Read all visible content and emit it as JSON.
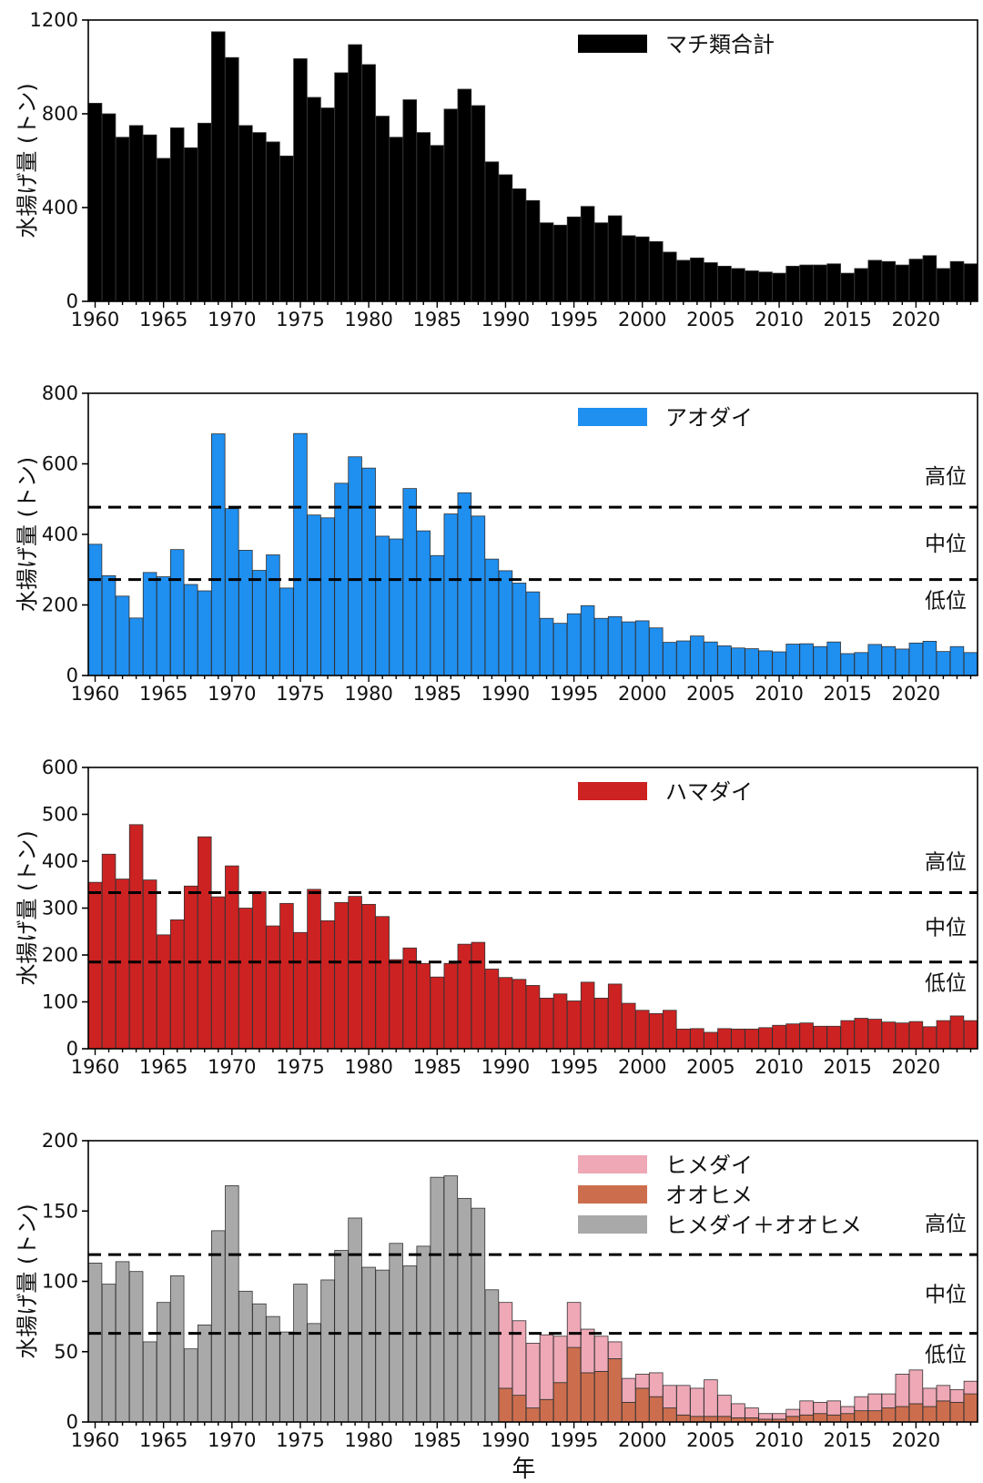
{
  "chart_data": [
    {
      "type": "bar",
      "ylabel": "水揚げ量 (トン)",
      "xlabel": "",
      "x_ticks": [
        "1960",
        "1965",
        "1970",
        "1975",
        "1980",
        "1985",
        "1990",
        "1995",
        "2000",
        "2005",
        "2010",
        "2015",
        "2020"
      ],
      "y_ticks": [
        "0",
        "400",
        "800",
        "1200"
      ],
      "ylim": [
        0,
        1200
      ],
      "xlim": [
        1959.5,
        2024.5
      ],
      "legend": {
        "position": "top-center",
        "entries": [
          {
            "label": "マチ類合計",
            "color": "#000000"
          }
        ]
      },
      "levels": [],
      "series": [
        {
          "name": "マチ類合計",
          "color": "#000000",
          "x": [
            1960,
            1961,
            1962,
            1963,
            1964,
            1965,
            1966,
            1967,
            1968,
            1969,
            1970,
            1971,
            1972,
            1973,
            1974,
            1975,
            1976,
            1977,
            1978,
            1979,
            1980,
            1981,
            1982,
            1983,
            1984,
            1985,
            1986,
            1987,
            1988,
            1989,
            1990,
            1991,
            1992,
            1993,
            1994,
            1995,
            1996,
            1997,
            1998,
            1999,
            2000,
            2001,
            2002,
            2003,
            2004,
            2005,
            2006,
            2007,
            2008,
            2009,
            2010,
            2011,
            2012,
            2013,
            2014,
            2015,
            2016,
            2017,
            2018,
            2019,
            2020,
            2021,
            2022,
            2023,
            2024
          ],
          "values": [
            845,
            800,
            700,
            750,
            710,
            610,
            740,
            655,
            760,
            1150,
            1040,
            750,
            720,
            680,
            620,
            1035,
            870,
            825,
            975,
            1095,
            1010,
            790,
            700,
            860,
            720,
            665,
            820,
            905,
            835,
            595,
            540,
            480,
            430,
            335,
            325,
            360,
            405,
            335,
            365,
            280,
            275,
            255,
            210,
            175,
            185,
            165,
            150,
            140,
            130,
            125,
            120,
            150,
            155,
            155,
            160,
            120,
            140,
            175,
            170,
            155,
            180,
            195,
            140,
            170,
            160
          ]
        }
      ]
    },
    {
      "type": "bar",
      "ylabel": "水揚げ量 (トン)",
      "xlabel": "",
      "x_ticks": [
        "1960",
        "1965",
        "1970",
        "1975",
        "1980",
        "1985",
        "1990",
        "1995",
        "2000",
        "2005",
        "2010",
        "2015",
        "2020"
      ],
      "y_ticks": [
        "0",
        "200",
        "400",
        "600",
        "800"
      ],
      "ylim": [
        0,
        800
      ],
      "xlim": [
        1959.5,
        2024.5
      ],
      "legend": {
        "position": "top-center",
        "entries": [
          {
            "label": "アオダイ",
            "color": "#1f8ff0"
          }
        ]
      },
      "levels": [
        {
          "value": 477,
          "style": "dashed"
        },
        {
          "value": 272,
          "style": "dashed"
        }
      ],
      "level_labels": [
        "高位",
        "中位",
        "低位"
      ],
      "series": [
        {
          "name": "アオダイ",
          "color": "#1f8ff0",
          "x": [
            1960,
            1961,
            1962,
            1963,
            1964,
            1965,
            1966,
            1967,
            1968,
            1969,
            1970,
            1971,
            1972,
            1973,
            1974,
            1975,
            1976,
            1977,
            1978,
            1979,
            1980,
            1981,
            1982,
            1983,
            1984,
            1985,
            1986,
            1987,
            1988,
            1989,
            1990,
            1991,
            1992,
            1993,
            1994,
            1995,
            1996,
            1997,
            1998,
            1999,
            2000,
            2001,
            2002,
            2003,
            2004,
            2005,
            2006,
            2007,
            2008,
            2009,
            2010,
            2011,
            2012,
            2013,
            2014,
            2015,
            2016,
            2017,
            2018,
            2019,
            2020,
            2021,
            2022,
            2023,
            2024
          ],
          "values": [
            372,
            283,
            225,
            163,
            292,
            280,
            357,
            258,
            240,
            685,
            473,
            355,
            298,
            342,
            248,
            686,
            455,
            447,
            545,
            620,
            588,
            395,
            387,
            530,
            410,
            340,
            458,
            518,
            452,
            330,
            297,
            262,
            237,
            162,
            148,
            175,
            198,
            162,
            167,
            152,
            155,
            135,
            94,
            98,
            112,
            95,
            84,
            78,
            76,
            70,
            67,
            89,
            90,
            82,
            95,
            62,
            65,
            88,
            82,
            75,
            92,
            97,
            68,
            82,
            65
          ]
        }
      ]
    },
    {
      "type": "bar",
      "ylabel": "水揚げ量 (トン)",
      "xlabel": "",
      "x_ticks": [
        "1960",
        "1965",
        "1970",
        "1975",
        "1980",
        "1985",
        "1990",
        "1995",
        "2000",
        "2005",
        "2010",
        "2015",
        "2020"
      ],
      "y_ticks": [
        "0",
        "100",
        "200",
        "300",
        "400",
        "500",
        "600"
      ],
      "ylim": [
        0,
        600
      ],
      "xlim": [
        1959.5,
        2024.5
      ],
      "legend": {
        "position": "top-center",
        "entries": [
          {
            "label": "ハマダイ",
            "color": "#cc2222"
          }
        ]
      },
      "levels": [
        {
          "value": 333,
          "style": "dashed"
        },
        {
          "value": 185,
          "style": "dashed"
        }
      ],
      "level_labels": [
        "高位",
        "中位",
        "低位"
      ],
      "series": [
        {
          "name": "ハマダイ",
          "color": "#cc2222",
          "x": [
            1960,
            1961,
            1962,
            1963,
            1964,
            1965,
            1966,
            1967,
            1968,
            1969,
            1970,
            1971,
            1972,
            1973,
            1974,
            1975,
            1976,
            1977,
            1978,
            1979,
            1980,
            1981,
            1982,
            1983,
            1984,
            1985,
            1986,
            1987,
            1988,
            1989,
            1990,
            1991,
            1992,
            1993,
            1994,
            1995,
            1996,
            1997,
            1998,
            1999,
            2000,
            2001,
            2002,
            2003,
            2004,
            2005,
            2006,
            2007,
            2008,
            2009,
            2010,
            2011,
            2012,
            2013,
            2014,
            2015,
            2016,
            2017,
            2018,
            2019,
            2020,
            2021,
            2022,
            2023,
            2024
          ],
          "values": [
            355,
            415,
            362,
            478,
            360,
            243,
            275,
            347,
            452,
            324,
            390,
            300,
            335,
            262,
            310,
            248,
            340,
            273,
            312,
            325,
            308,
            282,
            190,
            215,
            182,
            153,
            182,
            223,
            227,
            170,
            152,
            148,
            135,
            108,
            117,
            102,
            142,
            108,
            138,
            97,
            82,
            75,
            82,
            42,
            43,
            35,
            43,
            42,
            42,
            45,
            50,
            53,
            55,
            48,
            48,
            60,
            65,
            63,
            57,
            55,
            58,
            47,
            60,
            70,
            60
          ]
        }
      ]
    },
    {
      "type": "bar",
      "ylabel": "水揚げ量 (トン)",
      "xlabel": "年",
      "x_ticks": [
        "1960",
        "1965",
        "1970",
        "1975",
        "1980",
        "1985",
        "1990",
        "1995",
        "2000",
        "2005",
        "2010",
        "2015",
        "2020"
      ],
      "y_ticks": [
        "0",
        "50",
        "100",
        "150",
        "200"
      ],
      "ylim": [
        0,
        200
      ],
      "xlim": [
        1959.5,
        2024.5
      ],
      "legend": {
        "position": "top-center",
        "entries": [
          {
            "label": "ヒメダイ",
            "color": "#eea8b6"
          },
          {
            "label": "オオヒメ",
            "color": "#cc6e4e"
          },
          {
            "label": "ヒメダイ＋オオヒメ",
            "color": "#a9a9a9"
          }
        ]
      },
      "levels": [
        {
          "value": 119,
          "style": "dashed"
        },
        {
          "value": 63,
          "style": "dashed"
        }
      ],
      "level_labels": [
        "高位",
        "中位",
        "低位"
      ],
      "series": [
        {
          "name": "ヒメダイ＋オオヒメ",
          "color": "#a9a9a9",
          "x": [
            1960,
            1961,
            1962,
            1963,
            1964,
            1965,
            1966,
            1967,
            1968,
            1969,
            1970,
            1971,
            1972,
            1973,
            1974,
            1975,
            1976,
            1977,
            1978,
            1979,
            1980,
            1981,
            1982,
            1983,
            1984,
            1985,
            1986,
            1987,
            1988,
            1989
          ],
          "values": [
            113,
            98,
            114,
            107,
            57,
            85,
            104,
            52,
            69,
            136,
            168,
            93,
            84,
            75,
            64,
            98,
            70,
            101,
            122,
            145,
            110,
            108,
            127,
            111,
            125,
            174,
            175,
            159,
            152,
            94
          ]
        },
        {
          "name": "オオヒメ",
          "color": "#cc6e4e",
          "x": [
            1990,
            1991,
            1992,
            1993,
            1994,
            1995,
            1996,
            1997,
            1998,
            1999,
            2000,
            2001,
            2002,
            2003,
            2004,
            2005,
            2006,
            2007,
            2008,
            2009,
            2010,
            2011,
            2012,
            2013,
            2014,
            2015,
            2016,
            2017,
            2018,
            2019,
            2020,
            2021,
            2022,
            2023,
            2024
          ],
          "values": [
            24,
            19,
            10,
            16,
            28,
            53,
            35,
            36,
            45,
            14,
            24,
            18,
            10,
            5,
            4,
            4,
            4,
            3,
            3,
            2,
            2,
            4,
            5,
            6,
            5,
            6,
            8,
            8,
            10,
            11,
            13,
            11,
            15,
            14,
            20
          ]
        },
        {
          "name": "ヒメダイ",
          "color": "#eea8b6",
          "x": [
            1990,
            1991,
            1992,
            1993,
            1994,
            1995,
            1996,
            1997,
            1998,
            1999,
            2000,
            2001,
            2002,
            2003,
            2004,
            2005,
            2006,
            2007,
            2008,
            2009,
            2010,
            2011,
            2012,
            2013,
            2014,
            2015,
            2016,
            2017,
            2018,
            2019,
            2020,
            2021,
            2022,
            2023,
            2024
          ],
          "values": [
            61,
            53,
            46,
            46,
            33,
            32,
            31,
            25,
            12,
            17,
            10,
            17,
            16,
            21,
            20,
            26,
            15,
            10,
            7,
            4,
            4,
            5,
            10,
            8,
            10,
            5,
            10,
            12,
            10,
            23,
            24,
            13,
            11,
            9,
            9
          ]
        }
      ]
    }
  ]
}
